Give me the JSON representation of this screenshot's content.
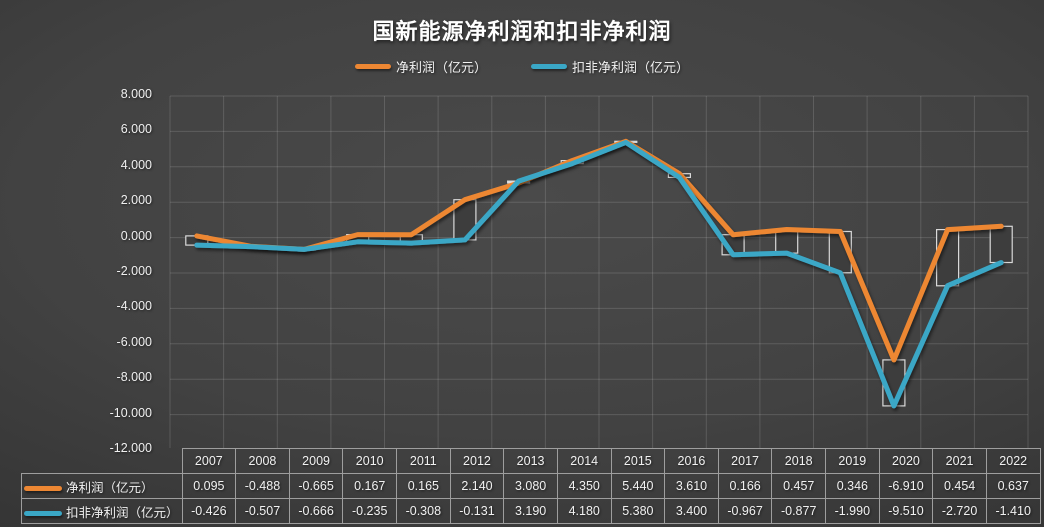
{
  "title": "国新能源净利润和扣非净利润",
  "legend": {
    "items": [
      {
        "label": "净利润（亿元）",
        "color": "#ED8733"
      },
      {
        "label": "扣非净利润（亿元）",
        "color": "#3AA7C6"
      }
    ]
  },
  "y_axis": {
    "tick_labels": [
      "8.000",
      "6.000",
      "4.000",
      "2.000",
      "0.000",
      "-2.000",
      "-4.000",
      "-6.000",
      "-8.000",
      "-10.000",
      "-12.000"
    ],
    "max": 8,
    "min": -12,
    "step": 2
  },
  "table": {
    "years": [
      "2007",
      "2008",
      "2009",
      "2010",
      "2011",
      "2012",
      "2013",
      "2014",
      "2015",
      "2016",
      "2017",
      "2018",
      "2019",
      "2020",
      "2021",
      "2022"
    ],
    "rows": [
      {
        "label": "净利润（亿元）",
        "color": "#ED8733",
        "values": [
          "0.095",
          "-0.488",
          "-0.665",
          "0.167",
          "0.165",
          "2.140",
          "3.080",
          "4.350",
          "5.440",
          "3.610",
          "0.166",
          "0.457",
          "0.346",
          "-6.910",
          "0.454",
          "0.637"
        ]
      },
      {
        "label": "扣非净利润（亿元）",
        "color": "#3AA7C6",
        "values": [
          "-0.426",
          "-0.507",
          "-0.666",
          "-0.235",
          "-0.308",
          "-0.131",
          "3.190",
          "4.180",
          "5.380",
          "3.400",
          "-0.967",
          "-0.877",
          "-1.990",
          "-9.510",
          "-2.720",
          "-1.410"
        ]
      }
    ]
  },
  "chart_data": {
    "type": "line",
    "title": "国新能源净利润和扣非净利润",
    "categories": [
      2007,
      2008,
      2009,
      2010,
      2011,
      2012,
      2013,
      2014,
      2015,
      2016,
      2017,
      2018,
      2019,
      2020,
      2021,
      2022
    ],
    "series": [
      {
        "name": "净利润（亿元）",
        "color": "#ED8733",
        "values": [
          0.095,
          -0.488,
          -0.665,
          0.167,
          0.165,
          2.14,
          3.08,
          4.35,
          5.44,
          3.61,
          0.166,
          0.457,
          0.346,
          -6.91,
          0.454,
          0.637
        ]
      },
      {
        "name": "扣非净利润（亿元）",
        "color": "#3AA7C6",
        "values": [
          -0.426,
          -0.507,
          -0.666,
          -0.235,
          -0.308,
          -0.131,
          3.19,
          4.18,
          5.38,
          3.4,
          -0.967,
          -0.877,
          -1.99,
          -9.51,
          -2.72,
          -1.41
        ]
      }
    ],
    "ylim": [
      -12,
      8
    ],
    "y_step": 2,
    "grid": true,
    "legend_position": "top",
    "data_table_shown": true,
    "zero_line": {
      "value": 0,
      "color": "#F0F000",
      "width": 5
    },
    "up_down_bars": {
      "up_fill": "#ECECEC",
      "down_fill": "#3D3D3D",
      "border": "#D9D9D9",
      "width": 22
    },
    "line_width": 5,
    "grid_color": "rgba(255,255,255,0.14)",
    "background": "dark-gray-radial-gradient"
  }
}
